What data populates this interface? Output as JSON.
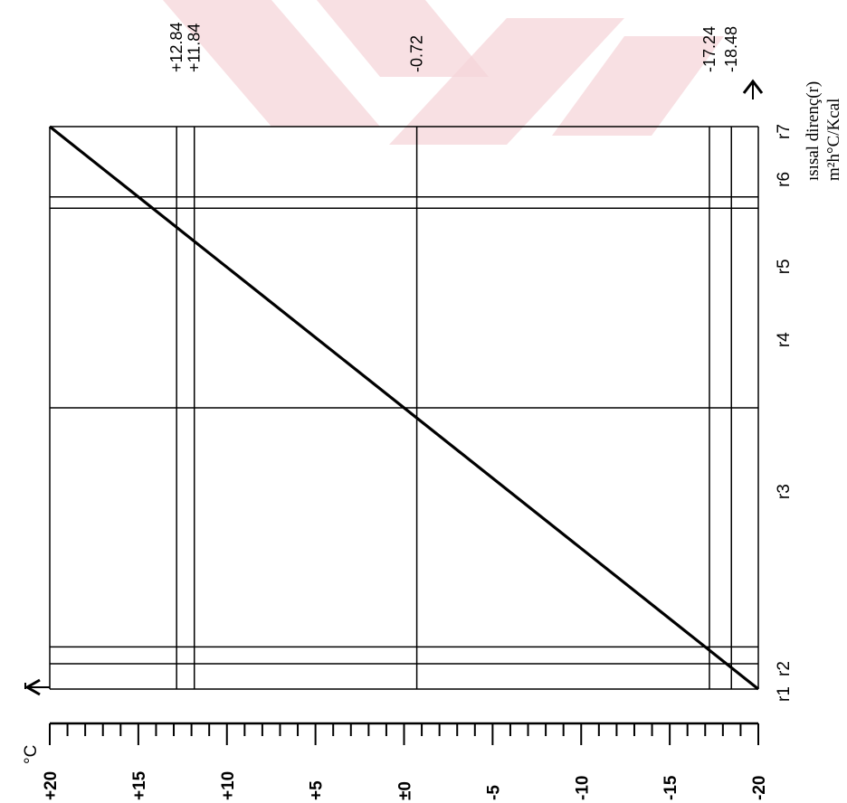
{
  "chart_data": {
    "type": "line",
    "orientation": "rotated-90-ccw",
    "title": "",
    "temperature_axis": {
      "unit_label": "°C",
      "range": [
        -20,
        20
      ],
      "major_step": 5,
      "minor_step": 1,
      "tick_labels": [
        "+20",
        "+15",
        "+10",
        "+5",
        "±0",
        "-5",
        "-10",
        "-15",
        "-20"
      ]
    },
    "resistance_axis": {
      "label_line1": "ısısal direnç(r)",
      "label_line2": "m²h°C/Kcal",
      "layer_boundaries": [
        "r1",
        "r2",
        "r3",
        "r4",
        "r5",
        "r6",
        "r7"
      ],
      "positions": [
        0,
        0.045,
        0.36,
        0.63,
        0.76,
        0.915,
        1.0
      ]
    },
    "interfaces": [
      0.0,
      0.045,
      0.075,
      0.5,
      0.855,
      0.875,
      1.0
    ],
    "series": [
      {
        "points": [
          {
            "r": 0.0,
            "t": -20
          },
          {
            "r": 1.0,
            "t": 20
          }
        ]
      }
    ],
    "marked_temperatures": [
      {
        "value": 12.84,
        "label": "+12.84"
      },
      {
        "value": 11.84,
        "label": "+11.84"
      },
      {
        "value": -0.72,
        "label": "-0.72"
      },
      {
        "value": -17.24,
        "label": "-17.24"
      },
      {
        "value": -18.48,
        "label": "-18.48"
      }
    ]
  }
}
